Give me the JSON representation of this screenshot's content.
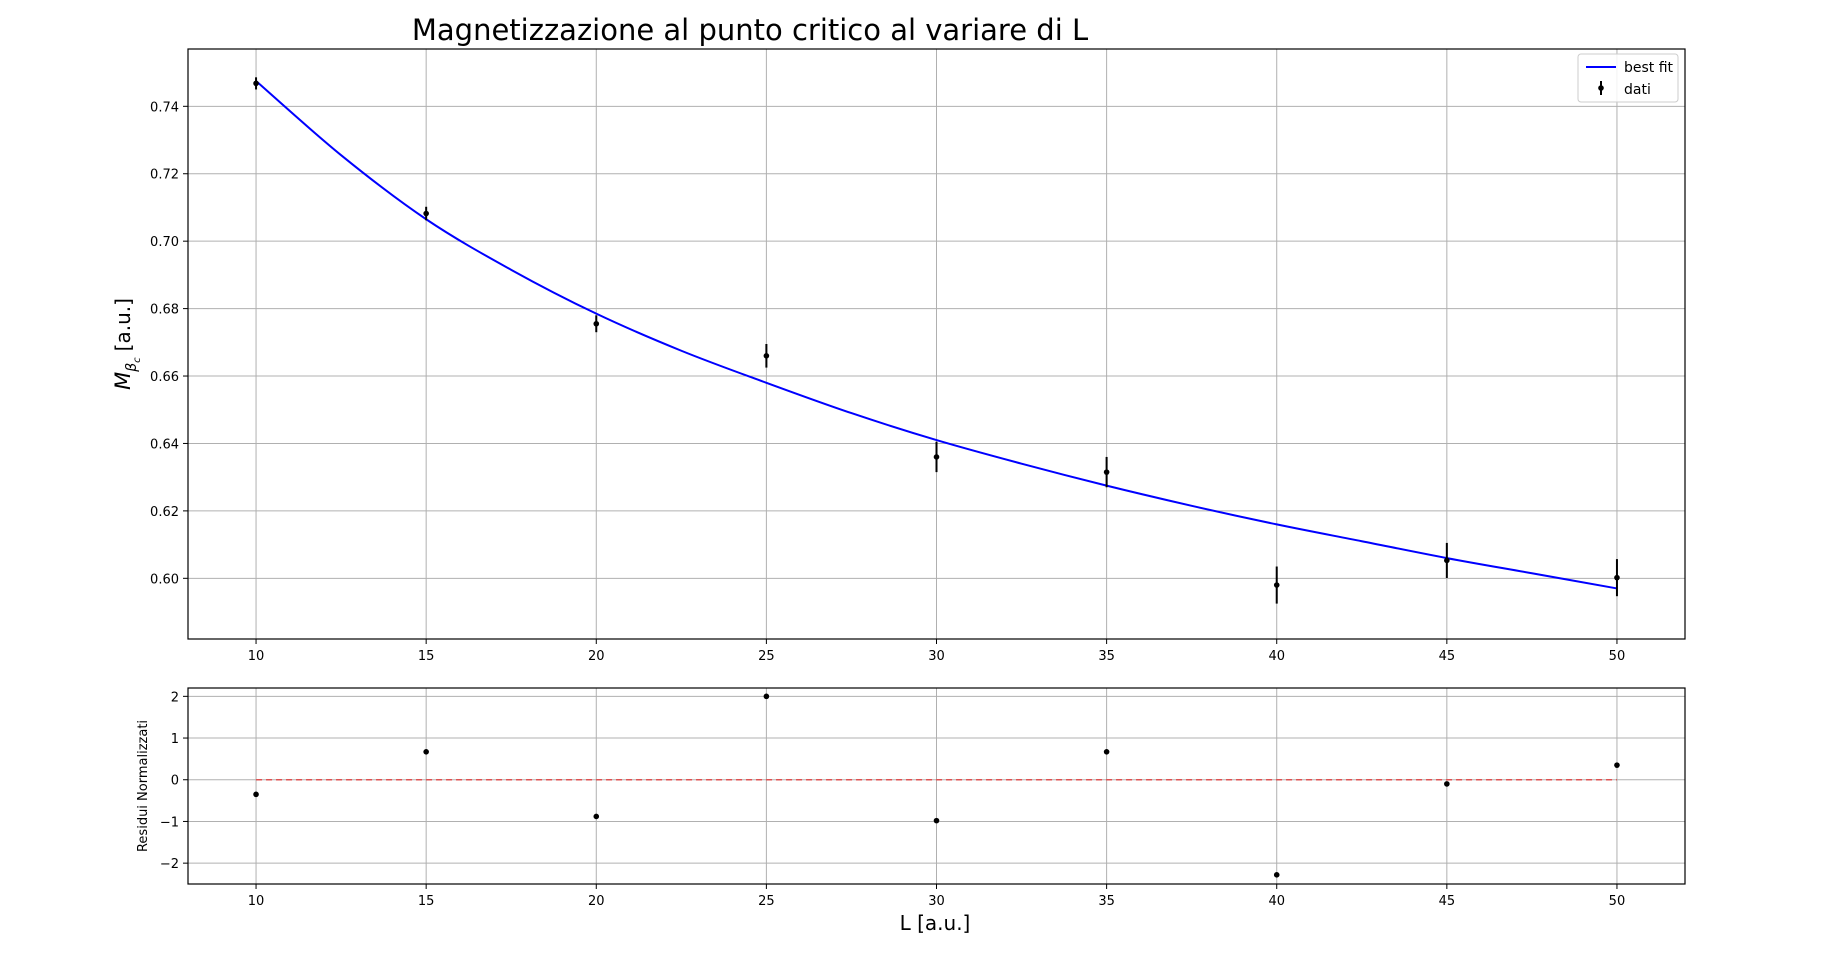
{
  "chart_data": [
    {
      "type": "scatter",
      "title": "Magnetizzazione al punto critico al variare di L",
      "ylabel_main": "M",
      "ylabel_sub_beta": "β",
      "ylabel_sub_c": "c",
      "ylabel_unit": "[a.u.]",
      "xlim": [
        8,
        52
      ],
      "ylim": [
        0.582,
        0.757
      ],
      "xticks": [
        "10",
        "15",
        "20",
        "25",
        "30",
        "35",
        "40",
        "45",
        "50"
      ],
      "xtick_values": [
        10,
        15,
        20,
        25,
        30,
        35,
        40,
        45,
        50
      ],
      "yticks": [
        "0.60",
        "0.62",
        "0.64",
        "0.66",
        "0.68",
        "0.70",
        "0.72",
        "0.74"
      ],
      "ytick_values": [
        0.6,
        0.62,
        0.64,
        0.66,
        0.68,
        0.7,
        0.72,
        0.74
      ],
      "grid": true,
      "legend_position": "top-right",
      "legend": [
        "best fit",
        "dati"
      ],
      "fit": {
        "name": "best fit",
        "color": "#0000ff",
        "x": [
          10,
          12.5,
          15,
          17.5,
          20,
          22.5,
          25,
          27.5,
          30,
          32.5,
          35,
          37.5,
          40,
          42.5,
          45,
          47.5,
          50
        ],
        "y": [
          0.7475,
          0.7255,
          0.7065,
          0.6915,
          0.6785,
          0.6675,
          0.658,
          0.649,
          0.641,
          0.634,
          0.6275,
          0.6215,
          0.616,
          0.611,
          0.606,
          0.6015,
          0.597
        ]
      },
      "series": [
        {
          "name": "dati",
          "color": "#000000",
          "x": [
            10,
            15,
            20,
            25,
            30,
            35,
            40,
            45,
            50
          ],
          "y": [
            0.7468,
            0.7082,
            0.6755,
            0.666,
            0.636,
            0.6315,
            0.598,
            0.6053,
            0.6002
          ],
          "err": [
            0.0018,
            0.002,
            0.0025,
            0.0035,
            0.0045,
            0.0045,
            0.0055,
            0.0052,
            0.0055
          ]
        }
      ]
    },
    {
      "type": "scatter",
      "xlabel": "L [a.u.]",
      "ylabel": "Residui Normalizzati",
      "xlim": [
        8,
        52
      ],
      "ylim": [
        -2.5,
        2.2
      ],
      "xticks": [
        "10",
        "15",
        "20",
        "25",
        "30",
        "35",
        "40",
        "45",
        "50"
      ],
      "xtick_values": [
        10,
        15,
        20,
        25,
        30,
        35,
        40,
        45,
        50
      ],
      "yticks": [
        "−2",
        "−1",
        "0",
        "1",
        "2"
      ],
      "ytick_values": [
        -2,
        -1,
        0,
        1,
        2
      ],
      "grid": true,
      "zero_line": {
        "y": 0,
        "color": "#e05252",
        "style": "dashed",
        "x": [
          10,
          50
        ]
      },
      "series": [
        {
          "color": "#000000",
          "x": [
            10,
            15,
            20,
            25,
            30,
            35,
            40,
            45,
            50
          ],
          "y": [
            -0.35,
            0.67,
            -0.88,
            2.0,
            -0.98,
            0.67,
            -2.28,
            -0.1,
            0.35
          ]
        }
      ]
    }
  ]
}
